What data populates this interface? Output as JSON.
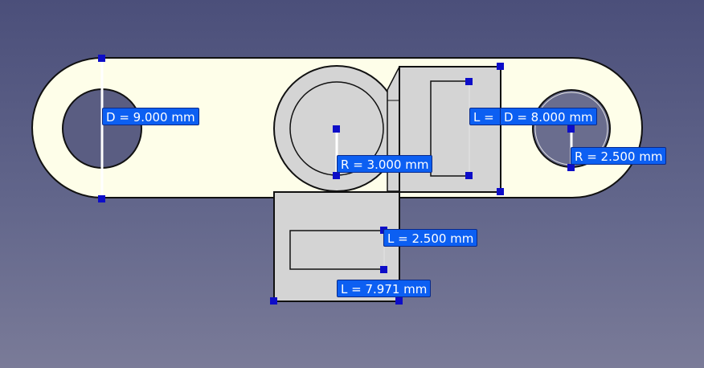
{
  "colors": {
    "part_fill": "#fefee9",
    "pocket_fill": "#d4d4d4",
    "outline": "#111111",
    "constraint_label_bg": "#0c5ff2",
    "handle": "#0d0dc8"
  },
  "dimensions": {
    "d1": "D = 9.000 mm",
    "r1": "R = 3.000 mm",
    "l_partial": "L = ",
    "d2": "D = 8.000 mm",
    "r2": "R = 2.500 mm",
    "l2": "L = 2.500 mm",
    "l3": "L = 7.971 mm"
  }
}
